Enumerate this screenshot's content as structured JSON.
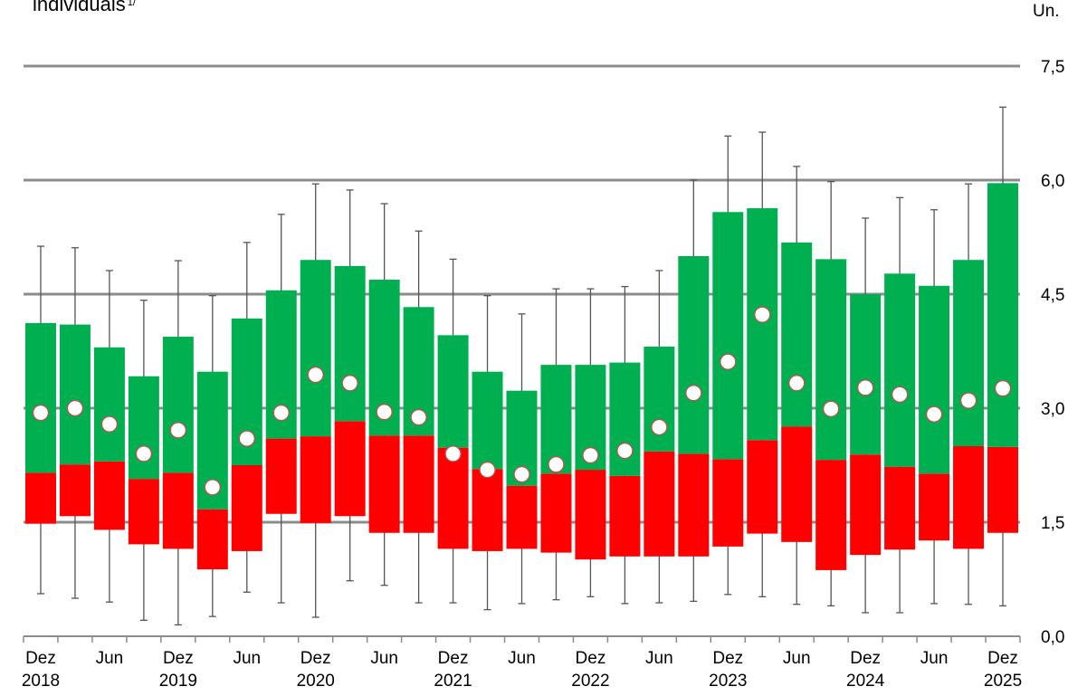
{
  "chart_data": {
    "type": "box",
    "title": "individuais",
    "title_superscript": "1/",
    "unit_label": "Un.",
    "categories": [
      "Dez 2018",
      null,
      "Jun",
      null,
      "Dez 2019",
      null,
      "Jun",
      null,
      "Dez 2020",
      null,
      "Jun",
      null,
      "Dez 2021",
      null,
      "Jun",
      null,
      "Dez 2022",
      null,
      "Jun",
      null,
      "Dez 2023",
      null,
      "Jun",
      null,
      "Dez 2024",
      null,
      "Jun",
      null,
      "Dez 2025"
    ],
    "whisker_low": [
      0.56,
      0.5,
      0.45,
      0.21,
      0.15,
      0.26,
      0.58,
      0.44,
      0.25,
      0.73,
      0.67,
      0.44,
      0.44,
      0.35,
      0.43,
      0.48,
      0.52,
      0.43,
      0.44,
      0.46,
      0.55,
      0.52,
      0.42,
      0.4,
      0.31,
      0.31,
      0.43,
      0.42,
      0.4
    ],
    "q1": [
      1.48,
      1.58,
      1.4,
      1.21,
      1.15,
      0.88,
      1.12,
      1.61,
      1.49,
      1.58,
      1.36,
      1.36,
      1.15,
      1.12,
      1.15,
      1.1,
      1.01,
      1.05,
      1.05,
      1.05,
      1.18,
      1.35,
      1.24,
      0.87,
      1.07,
      1.14,
      1.26,
      1.15,
      1.36
    ],
    "median": [
      2.15,
      2.26,
      2.3,
      2.07,
      2.15,
      1.67,
      2.25,
      2.6,
      2.63,
      2.83,
      2.64,
      2.64,
      2.48,
      2.2,
      1.98,
      2.14,
      2.19,
      2.11,
      2.43,
      2.4,
      2.33,
      2.58,
      2.76,
      2.32,
      2.39,
      2.23,
      2.14,
      2.5,
      2.49
    ],
    "q3": [
      4.12,
      4.1,
      3.8,
      3.42,
      3.94,
      3.48,
      4.18,
      4.55,
      4.95,
      4.87,
      4.69,
      4.33,
      3.96,
      3.48,
      3.23,
      3.57,
      3.57,
      3.6,
      3.81,
      5.0,
      5.58,
      5.63,
      5.18,
      4.96,
      4.5,
      4.77,
      4.61,
      4.95,
      5.96
    ],
    "whisker_high": [
      5.13,
      5.11,
      4.81,
      4.42,
      4.94,
      4.48,
      5.18,
      5.55,
      5.95,
      5.87,
      5.69,
      5.33,
      4.96,
      4.48,
      4.24,
      4.57,
      4.57,
      4.6,
      4.81,
      6.0,
      6.58,
      6.63,
      6.18,
      5.98,
      5.5,
      5.77,
      5.61,
      5.95,
      6.96
    ],
    "mean": [
      2.94,
      3.0,
      2.79,
      2.4,
      2.71,
      1.96,
      2.6,
      2.94,
      3.44,
      3.33,
      2.95,
      2.88,
      2.4,
      2.19,
      2.13,
      2.26,
      2.38,
      2.44,
      2.75,
      3.2,
      3.61,
      4.23,
      3.33,
      2.99,
      3.27,
      3.18,
      2.92,
      3.1,
      3.26
    ],
    "lower_color": "#ff0000",
    "upper_color": "#00b050",
    "ylim": [
      0,
      7.5
    ],
    "yticks": [
      {
        "value": 0,
        "label": "0,0"
      },
      {
        "value": 1.5,
        "label": "1,5"
      },
      {
        "value": 3,
        "label": "3,0"
      },
      {
        "value": 4.5,
        "label": "4,5"
      },
      {
        "value": 6,
        "label": "6,0"
      },
      {
        "value": 7.5,
        "label": "7,5"
      }
    ],
    "grid": true
  }
}
